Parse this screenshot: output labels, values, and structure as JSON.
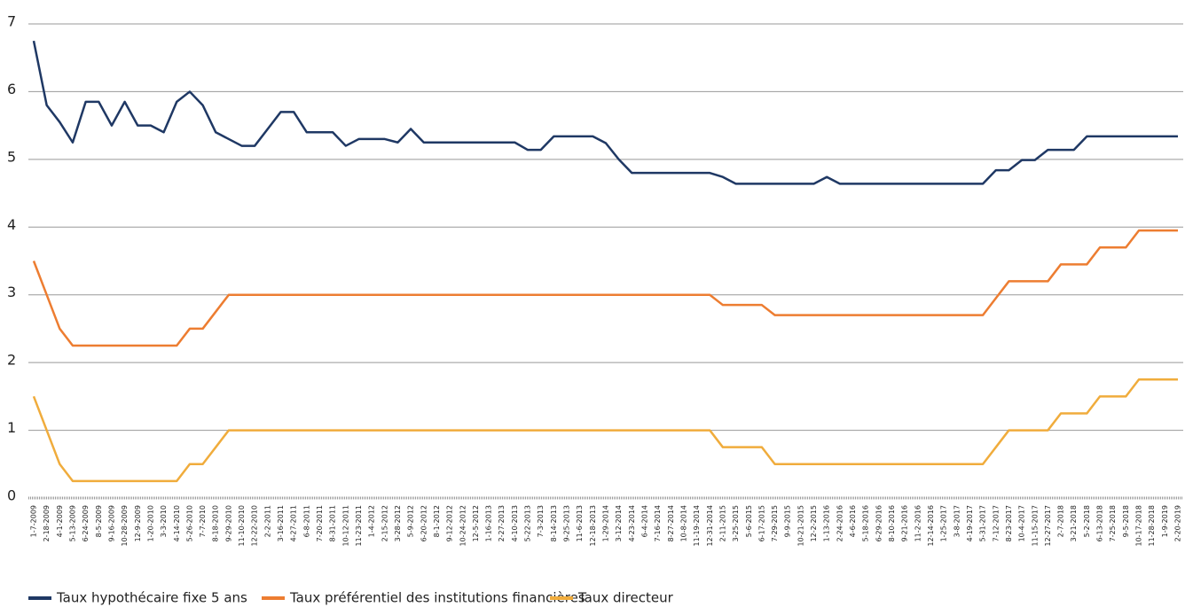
{
  "chart_data": {
    "type": "line",
    "categories": [
      "1-7-2009",
      "2-18-2009",
      "4-1-2009",
      "5-13-2009",
      "6-24-2009",
      "8-5-2009",
      "9-16-2009",
      "10-28-2009",
      "12-9-2009",
      "1-20-2010",
      "3-3-2010",
      "4-14-2010",
      "5-26-2010",
      "7-7-2010",
      "8-18-2010",
      "9-29-2010",
      "11-10-2010",
      "12-22-2010",
      "2-2-2011",
      "3-16-2011",
      "4-27-2011",
      "6-8-2011",
      "7-20-2011",
      "8-31-2011",
      "10-12-2011",
      "11-23-2011",
      "1-4-2012",
      "2-15-2012",
      "3-28-2012",
      "5-9-2012",
      "6-20-2012",
      "8-1-2012",
      "9-12-2012",
      "10-24-2012",
      "12-5-2012",
      "1-16-2013",
      "2-27-2013",
      "4-10-2013",
      "5-22-2013",
      "7-3-2013",
      "8-14-2013",
      "9-25-2013",
      "11-6-2013",
      "12-18-2013",
      "1-29-2014",
      "3-12-2014",
      "4-23-2014",
      "6-4-2014",
      "7-16-2014",
      "8-27-2014",
      "10-8-2014",
      "11-19-2014",
      "12-31-2014",
      "2-11-2015",
      "3-25-2015",
      "5-6-2015",
      "6-17-2015",
      "7-29-2015",
      "9-9-2015",
      "10-21-2015",
      "12-2-2015",
      "1-13-2016",
      "2-24-2016",
      "4-6-2016",
      "5-18-2016",
      "6-29-2016",
      "8-10-2016",
      "9-21-2016",
      "11-2-2016",
      "12-14-2016",
      "1-25-2017",
      "3-8-2017",
      "4-19-2017",
      "5-31-2017",
      "7-12-2017",
      "8-23-2017",
      "10-4-2017",
      "11-15-2017",
      "12-27-2017",
      "2-7-2018",
      "3-21-2018",
      "5-2-2018",
      "6-13-2018",
      "7-25-2018",
      "9-5-2018",
      "10-17-2018",
      "11-28-2018",
      "1-9-2019",
      "2-20-2019"
    ],
    "series": [
      {
        "name": "Taux hypothécaire fixe 5 ans",
        "color": "#1f3864",
        "values": [
          6.75,
          5.8,
          5.55,
          5.25,
          5.85,
          5.85,
          5.5,
          5.85,
          5.5,
          5.5,
          5.4,
          5.85,
          6.0,
          5.8,
          5.4,
          5.3,
          5.2,
          5.2,
          5.45,
          5.7,
          5.7,
          5.4,
          5.4,
          5.4,
          5.2,
          5.3,
          5.3,
          5.3,
          5.25,
          5.45,
          5.25,
          5.25,
          5.25,
          5.25,
          5.25,
          5.25,
          5.25,
          5.25,
          5.14,
          5.14,
          5.34,
          5.34,
          5.34,
          5.34,
          5.24,
          5.0,
          4.8,
          4.8,
          4.8,
          4.8,
          4.8,
          4.8,
          4.8,
          4.74,
          4.64,
          4.64,
          4.64,
          4.64,
          4.64,
          4.64,
          4.64,
          4.74,
          4.64,
          4.64,
          4.64,
          4.64,
          4.64,
          4.64,
          4.64,
          4.64,
          4.64,
          4.64,
          4.64,
          4.64,
          4.84,
          4.84,
          4.99,
          4.99,
          5.14,
          5.14,
          5.14,
          5.34,
          5.34,
          5.34,
          5.34,
          5.34,
          5.34,
          5.34,
          5.34
        ]
      },
      {
        "name": "Taux préférentiel des institutions financières",
        "color": "#ed7d31",
        "values": [
          3.5,
          3.0,
          2.5,
          2.25,
          2.25,
          2.25,
          2.25,
          2.25,
          2.25,
          2.25,
          2.25,
          2.25,
          2.5,
          2.5,
          2.75,
          3.0,
          3.0,
          3.0,
          3.0,
          3.0,
          3.0,
          3.0,
          3.0,
          3.0,
          3.0,
          3.0,
          3.0,
          3.0,
          3.0,
          3.0,
          3.0,
          3.0,
          3.0,
          3.0,
          3.0,
          3.0,
          3.0,
          3.0,
          3.0,
          3.0,
          3.0,
          3.0,
          3.0,
          3.0,
          3.0,
          3.0,
          3.0,
          3.0,
          3.0,
          3.0,
          3.0,
          3.0,
          3.0,
          2.85,
          2.85,
          2.85,
          2.85,
          2.7,
          2.7,
          2.7,
          2.7,
          2.7,
          2.7,
          2.7,
          2.7,
          2.7,
          2.7,
          2.7,
          2.7,
          2.7,
          2.7,
          2.7,
          2.7,
          2.7,
          2.95,
          3.2,
          3.2,
          3.2,
          3.2,
          3.45,
          3.45,
          3.45,
          3.7,
          3.7,
          3.7,
          3.95,
          3.95,
          3.95,
          3.95
        ]
      },
      {
        "name": "Taux directeur",
        "color": "#f0ac3c",
        "values": [
          1.5,
          1.0,
          0.5,
          0.25,
          0.25,
          0.25,
          0.25,
          0.25,
          0.25,
          0.25,
          0.25,
          0.25,
          0.5,
          0.5,
          0.75,
          1.0,
          1.0,
          1.0,
          1.0,
          1.0,
          1.0,
          1.0,
          1.0,
          1.0,
          1.0,
          1.0,
          1.0,
          1.0,
          1.0,
          1.0,
          1.0,
          1.0,
          1.0,
          1.0,
          1.0,
          1.0,
          1.0,
          1.0,
          1.0,
          1.0,
          1.0,
          1.0,
          1.0,
          1.0,
          1.0,
          1.0,
          1.0,
          1.0,
          1.0,
          1.0,
          1.0,
          1.0,
          1.0,
          0.75,
          0.75,
          0.75,
          0.75,
          0.5,
          0.5,
          0.5,
          0.5,
          0.5,
          0.5,
          0.5,
          0.5,
          0.5,
          0.5,
          0.5,
          0.5,
          0.5,
          0.5,
          0.5,
          0.5,
          0.5,
          0.75,
          1.0,
          1.0,
          1.0,
          1.0,
          1.25,
          1.25,
          1.25,
          1.5,
          1.5,
          1.5,
          1.75,
          1.75,
          1.75,
          1.75
        ]
      }
    ],
    "ylim": [
      0,
      7
    ],
    "yticks": [
      0,
      1,
      2,
      3,
      4,
      5,
      6,
      7
    ],
    "grid": true,
    "legend": "bottom"
  }
}
